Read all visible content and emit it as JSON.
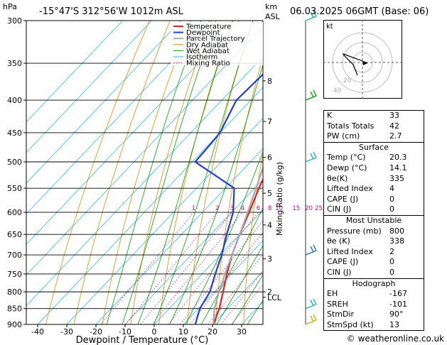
{
  "header": {
    "pressure_unit": "hPa",
    "location": "-15°47'S  312°56'W  1012m  ASL",
    "height_unit_km": "km",
    "height_unit_asl": "ASL",
    "datetime": "06.03.2025  06GMT  (Base: 06)"
  },
  "colors": {
    "temperature": "#e02020",
    "dewpoint": "#1e3fd4",
    "parcel": "#a8a8a8",
    "dry_adiabat": "#d98a00",
    "wet_adiabat": "#00a000",
    "isotherm": "#33b7ee",
    "mixing_ratio": "#d400a0"
  },
  "chart_data": {
    "type": "line",
    "title": "",
    "xlabel": "Dewpoint / Temperature (°C)",
    "ylabel": "hPa",
    "mixing_ratio_label": "Mixing Ratio (g/kg)",
    "pressure_levels": [
      300,
      350,
      400,
      450,
      500,
      550,
      600,
      650,
      700,
      750,
      800,
      850,
      900
    ],
    "temperature_ticks": [
      -40,
      -30,
      -20,
      -10,
      0,
      10,
      20,
      30
    ],
    "km_ticks": [
      {
        "label": "8",
        "p": 373
      },
      {
        "label": "7",
        "p": 432
      },
      {
        "label": "6",
        "p": 492
      },
      {
        "label": "5",
        "p": 560
      },
      {
        "label": "4",
        "p": 628
      },
      {
        "label": "3",
        "p": 710
      },
      {
        "label": "2",
        "p": 800
      },
      {
        "label": "LCL",
        "p": 816
      }
    ],
    "mixing_ratio_values": [
      "1",
      "2",
      "3",
      "4",
      "6",
      "8",
      "10",
      "15",
      "20",
      "25"
    ],
    "legend": [
      "Temperature",
      "Dewpoint",
      "Parcel Trajectory",
      "Dry Adiabat",
      "Wet Adiabat",
      "Isotherm",
      "Mixing Ratio"
    ],
    "legend_position": "top-left",
    "series": [
      {
        "name": "Temperature",
        "p": [
          900,
          850,
          800,
          750,
          700,
          650,
          600,
          550,
          500,
          450,
          400,
          350,
          300
        ],
        "t": [
          20.3,
          17.2,
          13.0,
          8.5,
          4.0,
          0.0,
          -4.0,
          -8.5,
          -13.0,
          -19.0,
          -26.0,
          -35.0,
          -44.0
        ]
      },
      {
        "name": "Dewpoint",
        "p": [
          900,
          850,
          800,
          750,
          700,
          650,
          600,
          550,
          500,
          470,
          450,
          400,
          350,
          300
        ],
        "t": [
          14.1,
          10.5,
          8.5,
          4.5,
          0.5,
          -4.5,
          -9.5,
          -17.0,
          -39.0,
          -39.5,
          -40.0,
          -45.0,
          -44.0,
          -48.0
        ]
      },
      {
        "name": "Parcel Trajectory",
        "p": [
          900,
          850,
          800,
          750,
          700,
          650,
          600,
          550,
          500,
          450,
          400,
          350,
          300
        ],
        "t": [
          20.3,
          15.5,
          11.6,
          7.8,
          4.0,
          0.0,
          -4.5,
          -9.5,
          -15.0,
          -21.0,
          -28.5,
          -37.0,
          -47.5
        ]
      }
    ]
  },
  "hodograph": {
    "label": "kt",
    "ring_labels": [
      "20",
      "40"
    ]
  },
  "wind_barbs": [
    {
      "p": 300,
      "color": "#20b0b0"
    },
    {
      "p": 400,
      "color": "#10a010"
    },
    {
      "p": 500,
      "color": "#20b0b0"
    },
    {
      "p": 700,
      "color": "#1e6fd4"
    },
    {
      "p": 850,
      "color": "#20b0b0"
    },
    {
      "p": 900,
      "color": "#d4b000"
    }
  ],
  "indices": [
    {
      "label": "K",
      "value": "33"
    },
    {
      "label": "Totals Totals",
      "value": "42"
    },
    {
      "label": "PW (cm)",
      "value": "2.7"
    }
  ],
  "surface": {
    "title": "Surface",
    "rows": [
      {
        "label": "Temp (°C)",
        "value": "20.3"
      },
      {
        "label": "Dewp (°C)",
        "value": "14.1"
      },
      {
        "label": "θe(K)",
        "value": "335"
      },
      {
        "label": "Lifted Index",
        "value": "4"
      },
      {
        "label": "CAPE (J)",
        "value": "0"
      },
      {
        "label": "CIN (J)",
        "value": "0"
      }
    ]
  },
  "most_unstable": {
    "title": "Most Unstable",
    "rows": [
      {
        "label": "Pressure (mb)",
        "value": "800"
      },
      {
        "label": "θe (K)",
        "value": "338"
      },
      {
        "label": "Lifted Index",
        "value": "2"
      },
      {
        "label": "CAPE (J)",
        "value": "0"
      },
      {
        "label": "CIN (J)",
        "value": "0"
      }
    ]
  },
  "hodograph_table": {
    "title": "Hodograph",
    "rows": [
      {
        "label": "EH",
        "value": "-167"
      },
      {
        "label": "SREH",
        "value": "-101"
      },
      {
        "label": "StmDir",
        "value": "90°"
      },
      {
        "label": "StmSpd (kt)",
        "value": "13"
      }
    ]
  },
  "copyright": "© weatheronline.co.uk"
}
